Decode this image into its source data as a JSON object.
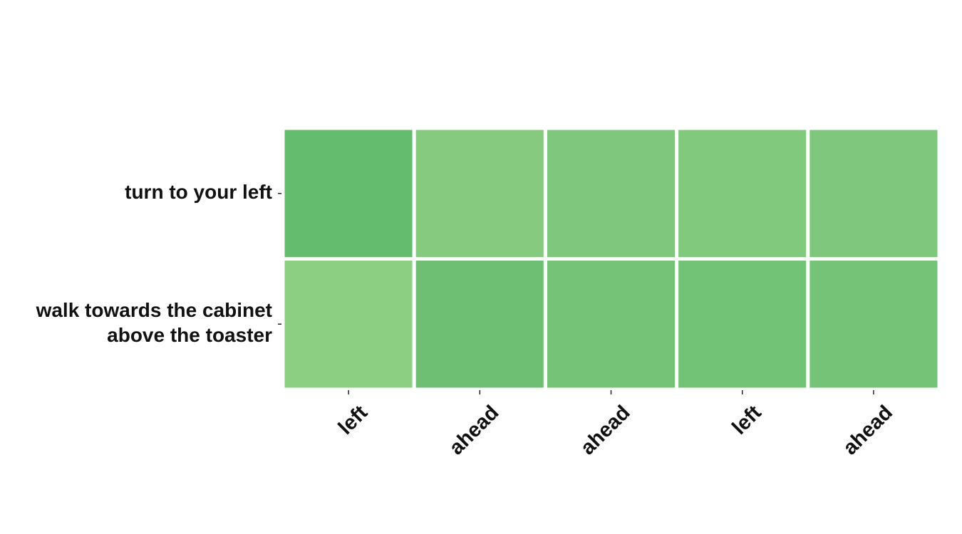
{
  "chart_data": {
    "type": "heatmap",
    "title": "",
    "xlabel": "",
    "ylabel": "",
    "rows": [
      [
        "turn to your left"
      ],
      [
        "walk towards the cabinet",
        "above the toaster"
      ]
    ],
    "columns": [
      "left",
      "ahead",
      "ahead",
      "left",
      "ahead"
    ],
    "values": [
      [
        0.92,
        0.58,
        0.65,
        0.63,
        0.66
      ],
      [
        0.48,
        0.8,
        0.73,
        0.75,
        0.74
      ]
    ],
    "colors": [
      [
        "#64bc6e",
        "#86ca7f",
        "#7ec77c",
        "#80c97d",
        "#7ec77c"
      ],
      [
        "#8ccf83",
        "#6ebf73",
        "#74c376",
        "#72c375",
        "#74c376"
      ]
    ],
    "colorscale": "greens",
    "colorbar": false,
    "grid": false
  }
}
